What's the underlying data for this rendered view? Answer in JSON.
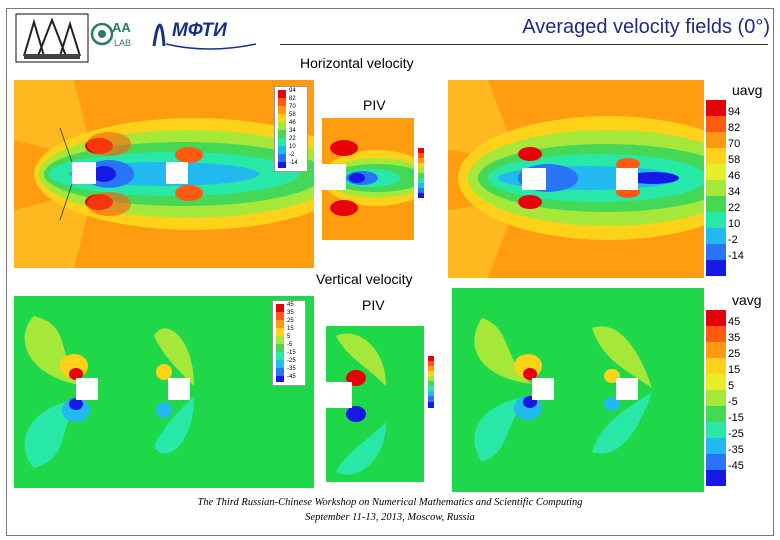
{
  "title": "Averaged velocity fields (0°)",
  "labels": {
    "horizontal": "Horizontal velocity",
    "vertical": "Vertical velocity",
    "piv_top": "PIV",
    "piv_bottom": "PIV"
  },
  "logos": {
    "mfti_text": "МФТИ"
  },
  "colorbar_u": {
    "title": "uavg",
    "ticks": [
      "94",
      "82",
      "70",
      "58",
      "46",
      "34",
      "22",
      "10",
      "-2",
      "-14"
    ],
    "colors": [
      "#e8000a",
      "#ff5a10",
      "#ff9a10",
      "#ffd21a",
      "#e4ef2a",
      "#a6e83a",
      "#44d856",
      "#28e8a8",
      "#22b8f0",
      "#2a74f8",
      "#1618e6"
    ]
  },
  "colorbar_v": {
    "title": "vavg",
    "ticks": [
      "45",
      "35",
      "25",
      "15",
      "5",
      "-5",
      "-15",
      "-25",
      "-35",
      "-45"
    ],
    "colors": [
      "#e8000a",
      "#ff5a10",
      "#ff9a10",
      "#ffd21a",
      "#e4ef2a",
      "#a6e83a",
      "#44d856",
      "#28e8a8",
      "#22b8f0",
      "#2a74f8",
      "#1618e6"
    ]
  },
  "mini_colorbar_u": {
    "ticks": [
      "94",
      "82",
      "70",
      "58",
      "46",
      "34",
      "22",
      "10",
      "-2",
      "-14"
    ]
  },
  "mini_colorbar_v": {
    "ticks": [
      "45",
      "35",
      "25",
      "15",
      "5",
      "-5",
      "-15",
      "-25",
      "-35",
      "-45"
    ]
  },
  "footer": {
    "line1": "The Third Russian-Chinese Workshop on Numerical Mathematics and Scientific Computing",
    "line2": "September 11-13, 2013, Moscow, Russia"
  }
}
